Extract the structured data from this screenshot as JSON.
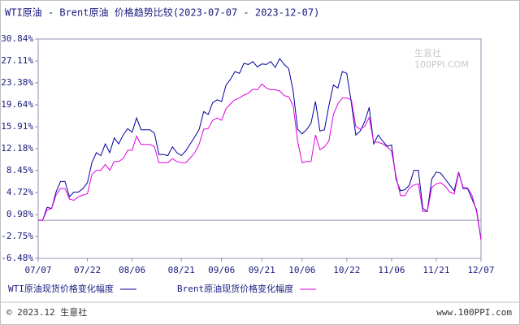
{
  "chart_data": {
    "type": "line",
    "title": "WTI原油 - Brent原油 价格趋势比较(2023-07-07 - 2023-12-07)",
    "categories": [
      "07/07",
      null,
      null,
      null,
      null,
      null,
      null,
      null,
      null,
      null,
      null,
      "07/22",
      null,
      null,
      null,
      null,
      null,
      null,
      null,
      null,
      null,
      "08/06",
      null,
      null,
      null,
      null,
      null,
      null,
      null,
      null,
      null,
      null,
      "08/21",
      null,
      null,
      null,
      null,
      null,
      null,
      null,
      null,
      "09/06",
      null,
      null,
      null,
      null,
      null,
      null,
      null,
      null,
      "09/21",
      null,
      null,
      null,
      null,
      null,
      null,
      null,
      null,
      "10/06",
      null,
      null,
      null,
      null,
      null,
      null,
      null,
      null,
      null,
      "10/22",
      null,
      null,
      null,
      null,
      null,
      null,
      null,
      null,
      null,
      "11/06",
      null,
      null,
      null,
      null,
      null,
      null,
      null,
      null,
      null,
      "11/21",
      null,
      null,
      null,
      null,
      null,
      null,
      null,
      null,
      null,
      "12/07"
    ],
    "series": [
      {
        "name": "WTI原油现货价格变化幅度",
        "color": "#0000a0",
        "values": [
          0,
          0,
          2.2,
          2.0,
          4.8,
          6.6,
          6.6,
          4.0,
          4.8,
          4.8,
          5.4,
          6.4,
          9.8,
          11.5,
          11.0,
          13.0,
          11.5,
          14.0,
          13.0,
          14.5,
          15.6,
          15.0,
          17.4,
          15.4,
          15.4,
          15.4,
          14.8,
          11.2,
          11.2,
          11.0,
          12.5,
          11.5,
          11.0,
          11.8,
          13.0,
          14.2,
          15.5,
          18.5,
          18.0,
          20.0,
          20.5,
          20.2,
          23.0,
          24.0,
          25.3,
          25.0,
          26.7,
          26.5,
          27.0,
          26.1,
          26.6,
          26.5,
          27.0,
          26.0,
          27.5,
          26.5,
          25.8,
          22.0,
          15.5,
          14.7,
          15.4,
          16.5,
          20.2,
          15.2,
          15.4,
          19.5,
          23.0,
          22.5,
          25.3,
          25.0,
          20.0,
          14.5,
          15.2,
          16.8,
          19.2,
          13.0,
          14.5,
          13.5,
          12.6,
          12.8,
          7.0,
          5.0,
          5.2,
          6.0,
          8.5,
          8.5,
          2.0,
          1.5,
          7.0,
          8.2,
          8.0,
          7.0,
          6.0,
          5.0,
          8.2,
          5.4,
          5.4,
          3.6,
          1.8,
          -3.3
        ]
      },
      {
        "name": "Brent原油现货价格变化幅度",
        "color": "#e000e0",
        "values": [
          0,
          0,
          1.8,
          2.0,
          4.3,
          5.4,
          5.4,
          3.6,
          3.4,
          4.0,
          4.3,
          4.5,
          7.8,
          8.5,
          8.5,
          9.5,
          8.5,
          10.0,
          10.0,
          10.5,
          11.9,
          11.9,
          14.3,
          12.9,
          12.9,
          12.9,
          12.5,
          9.8,
          9.8,
          9.8,
          10.5,
          10.0,
          9.8,
          9.8,
          10.6,
          11.5,
          13.0,
          15.5,
          15.6,
          17.0,
          17.4,
          17.0,
          19.0,
          19.8,
          20.5,
          20.8,
          21.3,
          21.6,
          22.3,
          22.2,
          23.2,
          22.5,
          22.2,
          22.2,
          22.0,
          21.2,
          21.0,
          19.5,
          13.5,
          9.8,
          10.0,
          10.0,
          14.5,
          12.0,
          12.5,
          13.5,
          18.0,
          19.8,
          20.8,
          20.8,
          20.5,
          16.0,
          15.5,
          16.0,
          17.5,
          13.3,
          13.3,
          13.0,
          12.5,
          11.8,
          7.5,
          4.2,
          4.2,
          5.5,
          6.0,
          6.2,
          1.5,
          1.5,
          5.6,
          6.2,
          6.4,
          5.8,
          4.8,
          4.5,
          8.0,
          5.6,
          5.5,
          4.2,
          1.5,
          -3.3
        ]
      }
    ],
    "ylim": [
      -6.48,
      30.84
    ],
    "yticks": [
      {
        "value": -6.48,
        "label": "-6.48%"
      },
      {
        "value": -2.75,
        "label": "-2.75%"
      },
      {
        "value": 0.98,
        "label": "0.98%"
      },
      {
        "value": 4.72,
        "label": "4.72%"
      },
      {
        "value": 8.45,
        "label": "8.45%"
      },
      {
        "value": 12.18,
        "label": "12.18%"
      },
      {
        "value": 15.91,
        "label": "15.91%"
      },
      {
        "value": 19.64,
        "label": "19.64%"
      },
      {
        "value": 23.38,
        "label": "23.38%"
      },
      {
        "value": 27.11,
        "label": "27.11%"
      },
      {
        "value": 30.84,
        "label": "30.84%"
      }
    ],
    "footer": "© 2023.12 生意社",
    "website": "www.100PPI.com",
    "watermark": "生意社",
    "watermark_sub": "100PPI.COM"
  }
}
